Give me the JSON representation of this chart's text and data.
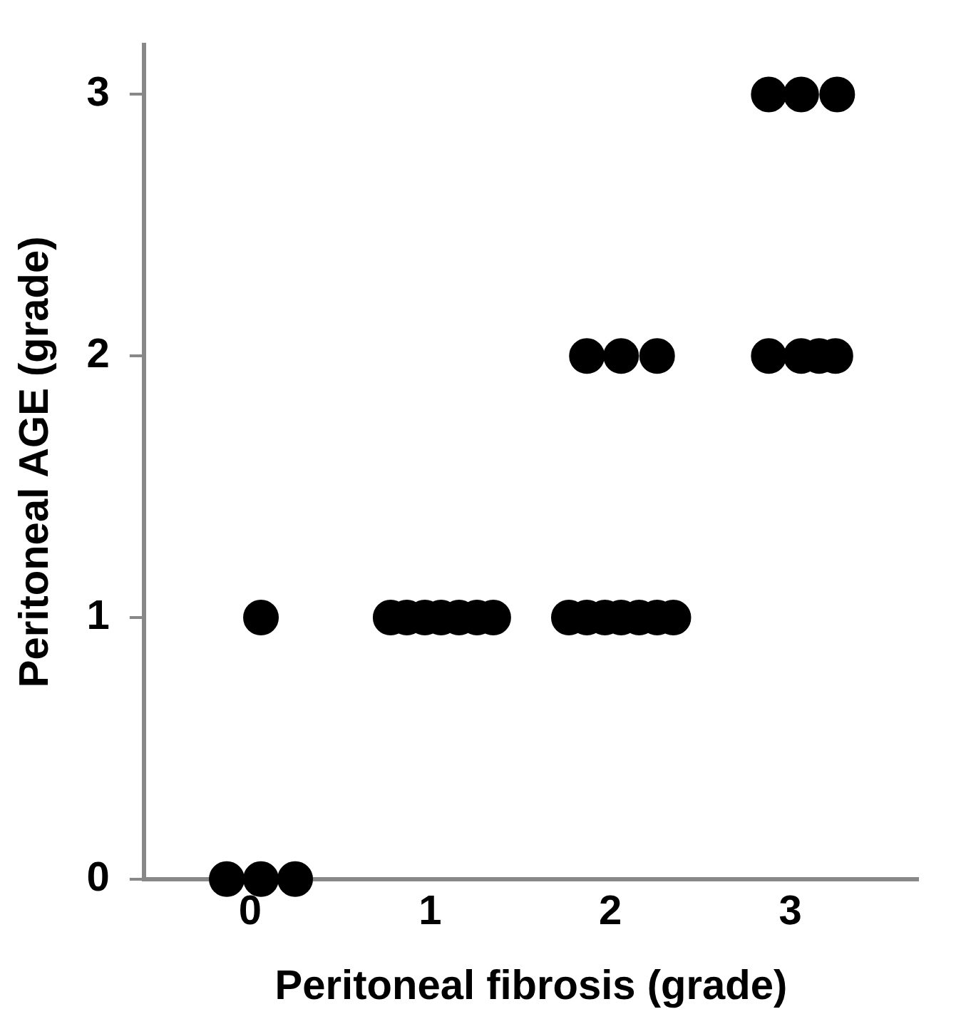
{
  "chart_data": {
    "type": "scatter",
    "xlabel": "Peritoneal fibrosis (grade)",
    "ylabel": "Peritoneal AGE (grade)",
    "xlim": [
      -0.59,
      3.71
    ],
    "xticks": [
      0,
      1,
      2,
      3
    ],
    "ylim": [
      0,
      3.19
    ],
    "yticks": [
      0,
      1,
      2,
      3
    ],
    "grid": false,
    "legend": false,
    "marker": "circle",
    "series": [
      {
        "color": "#000000",
        "x": [
          -0.13,
          0.06,
          0.25,
          0.06,
          0.78,
          0.87,
          0.97,
          1.06,
          1.16,
          1.26,
          1.35,
          1.77,
          1.87,
          1.97,
          2.06,
          2.16,
          2.26,
          2.35,
          1.87,
          2.06,
          2.26,
          2.88,
          3.06,
          3.16,
          3.25,
          2.88,
          3.06,
          3.26
        ],
        "values": [
          0,
          0,
          0,
          1,
          1,
          1,
          1,
          1,
          1,
          1,
          1,
          1,
          1,
          1,
          1,
          1,
          1,
          1,
          2,
          2,
          2,
          2,
          2,
          2,
          2,
          3,
          3,
          3
        ]
      }
    ]
  }
}
